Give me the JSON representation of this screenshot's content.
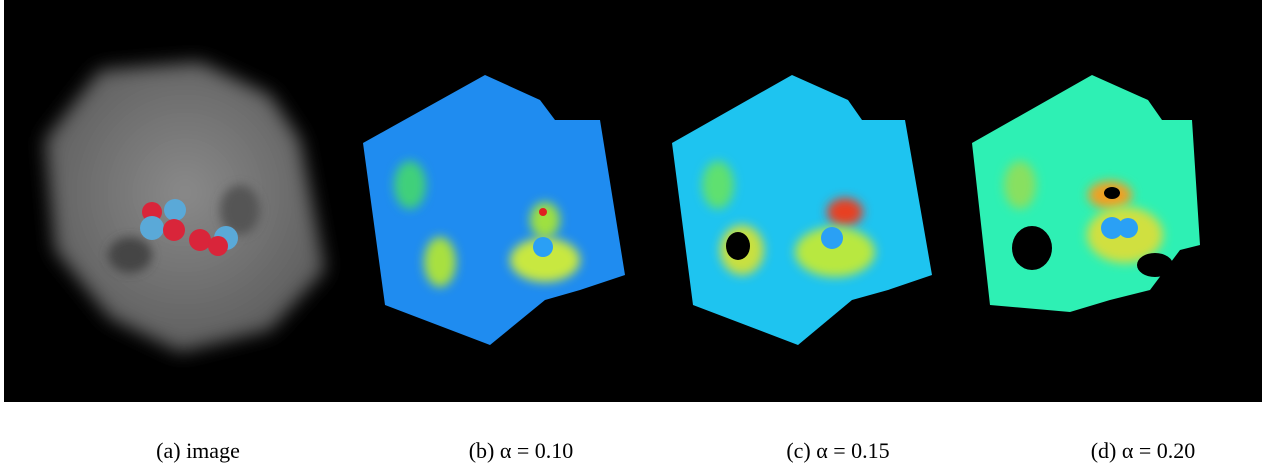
{
  "panels": [
    {
      "caption": "(a) image"
    },
    {
      "caption": "(b) α = 0.10"
    },
    {
      "caption": "(c) α = 0.15"
    },
    {
      "caption": "(d) α = 0.20"
    }
  ]
}
